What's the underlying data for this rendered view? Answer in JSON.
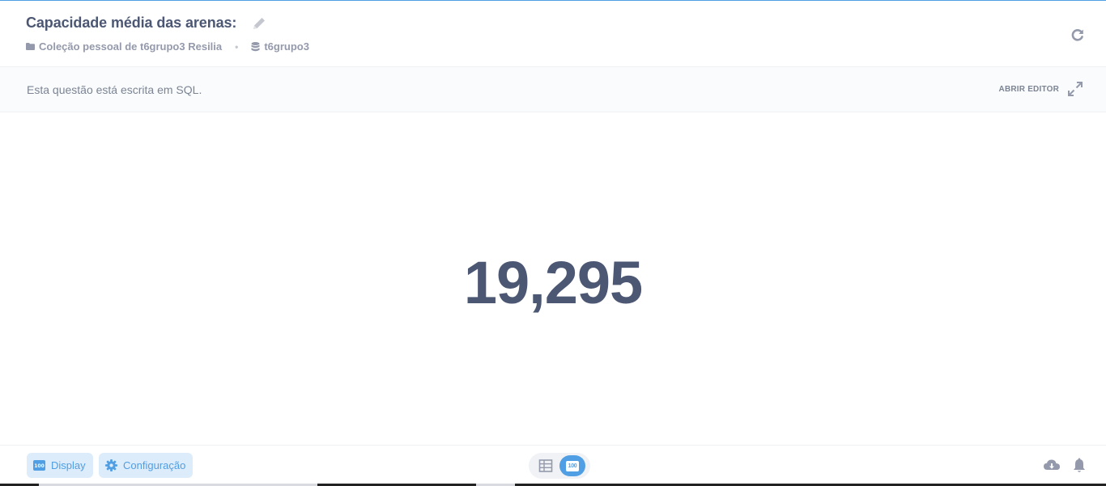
{
  "header": {
    "title": "Capacidade média das arenas:",
    "breadcrumbs": [
      {
        "label": "Coleção pessoal de t6grupo3 Resilia",
        "icon": "folder-icon"
      },
      {
        "label": "t6grupo3",
        "icon": "database-icon"
      }
    ],
    "separator": "•"
  },
  "sql_bar": {
    "note": "Esta questão está escrita em SQL.",
    "open_editor_label": "ABRIR EDITOR"
  },
  "main": {
    "value": "19,295"
  },
  "footer": {
    "display_label": "Display",
    "config_label": "Configuração",
    "badge_text": "100",
    "scalar_badge_text": "100"
  },
  "colors": {
    "brand": "#509ee3",
    "text": "#4c5773",
    "muted": "#949aab",
    "button_bg": "#ddecfa"
  }
}
